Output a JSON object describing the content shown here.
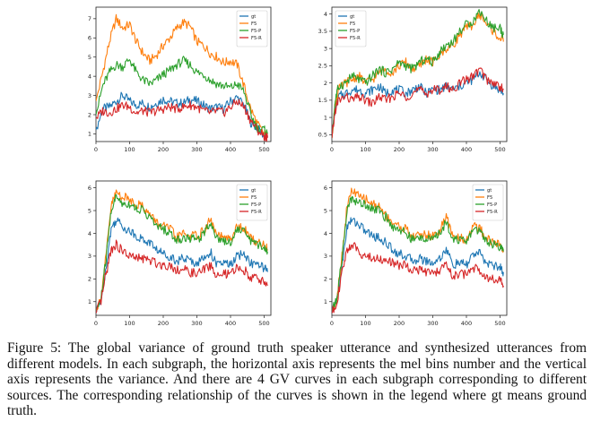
{
  "chart_data": [
    {
      "type": "line",
      "title": "",
      "xlabel": "",
      "ylabel": "",
      "xlim": [
        0,
        520
      ],
      "ylim": [
        0.6,
        7.6
      ],
      "xticks": [
        0,
        100,
        200,
        300,
        400,
        500
      ],
      "yticks": [
        1,
        2,
        3,
        4,
        5,
        6,
        7
      ],
      "legend": "top-right",
      "series": [
        {
          "name": "gt",
          "color": "#1f77b4",
          "x": [
            0,
            20,
            40,
            60,
            80,
            100,
            120,
            140,
            160,
            180,
            200,
            220,
            240,
            260,
            280,
            300,
            320,
            340,
            360,
            380,
            400,
            420,
            440,
            460,
            480,
            500,
            510
          ],
          "values": [
            1.2,
            2.3,
            2.4,
            2.7,
            3.0,
            2.7,
            2.5,
            2.6,
            2.4,
            2.6,
            2.8,
            2.7,
            2.6,
            2.6,
            2.8,
            2.7,
            2.5,
            2.3,
            2.4,
            2.3,
            2.7,
            2.9,
            2.5,
            1.6,
            1.3,
            0.9,
            0.8
          ]
        },
        {
          "name": "F5",
          "color": "#ff7f0e",
          "x": [
            0,
            20,
            40,
            60,
            80,
            100,
            120,
            140,
            160,
            180,
            200,
            220,
            240,
            260,
            280,
            300,
            320,
            340,
            360,
            380,
            400,
            420,
            440,
            460,
            480,
            500,
            510
          ],
          "values": [
            2.7,
            4.2,
            5.8,
            7.0,
            6.5,
            6.7,
            5.8,
            5.2,
            4.8,
            5.1,
            5.6,
            6.0,
            6.5,
            6.8,
            6.6,
            5.8,
            5.6,
            5.2,
            5.0,
            4.7,
            4.8,
            4.6,
            3.5,
            2.3,
            1.5,
            1.0,
            0.9
          ]
        },
        {
          "name": "F5-P",
          "color": "#2ca02c",
          "x": [
            0,
            20,
            40,
            60,
            80,
            100,
            120,
            140,
            160,
            180,
            200,
            220,
            240,
            260,
            280,
            300,
            320,
            340,
            360,
            380,
            400,
            420,
            440,
            460,
            480,
            500,
            510
          ],
          "values": [
            2.0,
            3.5,
            4.2,
            4.6,
            4.5,
            4.9,
            4.2,
            3.8,
            3.6,
            3.8,
            4.1,
            4.3,
            4.6,
            4.8,
            4.6,
            4.2,
            4.1,
            3.8,
            3.6,
            3.5,
            3.4,
            3.6,
            3.2,
            2.0,
            1.3,
            1.2,
            1.0
          ]
        },
        {
          "name": "F5-R",
          "color": "#d62728",
          "x": [
            0,
            20,
            40,
            60,
            80,
            100,
            120,
            140,
            160,
            180,
            200,
            220,
            240,
            260,
            280,
            300,
            320,
            340,
            360,
            380,
            400,
            420,
            440,
            460,
            480,
            500,
            510
          ],
          "values": [
            1.8,
            2.2,
            2.1,
            2.3,
            2.5,
            2.4,
            2.1,
            2.2,
            2.1,
            2.2,
            2.3,
            2.4,
            2.3,
            2.4,
            2.5,
            2.4,
            2.2,
            2.1,
            2.2,
            2.1,
            2.4,
            2.7,
            2.4,
            1.7,
            1.2,
            0.9,
            0.8
          ]
        }
      ]
    },
    {
      "type": "line",
      "title": "",
      "xlabel": "",
      "ylabel": "",
      "xlim": [
        0,
        520
      ],
      "ylim": [
        0.3,
        4.2
      ],
      "xticks": [
        0,
        100,
        200,
        300,
        400,
        500
      ],
      "yticks": [
        0.5,
        1.0,
        1.5,
        2.0,
        2.5,
        3.0,
        3.5,
        4.0
      ],
      "legend": "top-left",
      "series": [
        {
          "name": "gt",
          "color": "#1f77b4",
          "x": [
            0,
            10,
            20,
            40,
            60,
            80,
            100,
            120,
            140,
            160,
            180,
            200,
            220,
            240,
            260,
            280,
            300,
            320,
            340,
            360,
            380,
            400,
            420,
            440,
            460,
            480,
            500,
            510
          ],
          "values": [
            0.4,
            1.3,
            1.6,
            1.7,
            1.8,
            1.8,
            1.7,
            1.8,
            1.9,
            1.7,
            1.8,
            1.8,
            1.7,
            1.8,
            1.9,
            1.7,
            1.8,
            1.8,
            1.9,
            1.8,
            1.9,
            2.0,
            2.1,
            2.3,
            2.1,
            1.9,
            1.8,
            1.7
          ]
        },
        {
          "name": "F5",
          "color": "#ff7f0e",
          "x": [
            0,
            10,
            20,
            40,
            60,
            80,
            100,
            120,
            140,
            160,
            180,
            200,
            220,
            240,
            260,
            280,
            300,
            320,
            340,
            360,
            380,
            400,
            420,
            440,
            460,
            480,
            500,
            510
          ],
          "values": [
            0.4,
            1.4,
            1.8,
            2.0,
            2.1,
            2.2,
            2.0,
            2.1,
            2.3,
            2.4,
            2.3,
            2.5,
            2.6,
            2.4,
            2.5,
            2.7,
            2.6,
            2.8,
            3.0,
            3.1,
            3.4,
            3.6,
            3.7,
            4.0,
            3.7,
            3.5,
            3.3,
            3.2
          ]
        },
        {
          "name": "F5-P",
          "color": "#2ca02c",
          "x": [
            0,
            10,
            20,
            40,
            60,
            80,
            100,
            120,
            140,
            160,
            180,
            200,
            220,
            240,
            260,
            280,
            300,
            320,
            340,
            360,
            380,
            400,
            420,
            440,
            460,
            480,
            500,
            510
          ],
          "values": [
            0.4,
            1.5,
            1.9,
            2.0,
            2.2,
            2.1,
            2.0,
            2.2,
            2.4,
            2.3,
            2.4,
            2.6,
            2.5,
            2.4,
            2.6,
            2.7,
            2.6,
            2.9,
            3.1,
            3.2,
            3.5,
            3.7,
            3.8,
            4.1,
            3.8,
            3.6,
            3.6,
            3.4
          ]
        },
        {
          "name": "F5-R",
          "color": "#d62728",
          "x": [
            0,
            10,
            20,
            40,
            60,
            80,
            100,
            120,
            140,
            160,
            180,
            200,
            220,
            240,
            260,
            280,
            300,
            320,
            340,
            360,
            380,
            400,
            420,
            440,
            460,
            480,
            500,
            510
          ],
          "values": [
            0.4,
            1.2,
            1.5,
            1.6,
            1.5,
            1.6,
            1.5,
            1.4,
            1.6,
            1.5,
            1.6,
            1.7,
            1.6,
            1.7,
            1.8,
            1.7,
            1.8,
            1.8,
            1.9,
            1.8,
            2.0,
            2.1,
            2.2,
            2.4,
            2.1,
            2.0,
            1.9,
            1.8
          ]
        }
      ]
    },
    {
      "type": "line",
      "title": "",
      "xlabel": "",
      "ylabel": "",
      "xlim": [
        0,
        520
      ],
      "ylim": [
        0.4,
        6.3
      ],
      "xticks": [
        0,
        100,
        200,
        300,
        400,
        500
      ],
      "yticks": [
        1,
        2,
        3,
        4,
        5,
        6
      ],
      "legend": "top-right",
      "series": [
        {
          "name": "gt",
          "color": "#1f77b4",
          "x": [
            0,
            15,
            30,
            45,
            60,
            80,
            100,
            120,
            140,
            160,
            180,
            200,
            220,
            240,
            260,
            280,
            300,
            320,
            340,
            360,
            380,
            400,
            420,
            440,
            460,
            480,
            500,
            510
          ],
          "values": [
            0.5,
            1.1,
            2.5,
            4.2,
            4.6,
            4.3,
            4.1,
            3.9,
            3.7,
            3.6,
            3.3,
            3.1,
            3.0,
            2.8,
            2.9,
            2.8,
            2.7,
            2.9,
            3.2,
            2.6,
            2.7,
            2.6,
            3.0,
            3.1,
            2.7,
            2.6,
            2.5,
            2.3
          ]
        },
        {
          "name": "F5",
          "color": "#ff7f0e",
          "x": [
            0,
            15,
            30,
            45,
            60,
            80,
            100,
            120,
            140,
            160,
            180,
            200,
            220,
            240,
            260,
            280,
            300,
            320,
            340,
            360,
            380,
            400,
            420,
            440,
            460,
            480,
            500,
            510
          ],
          "values": [
            0.6,
            1.2,
            3.0,
            5.2,
            5.8,
            5.6,
            5.5,
            5.3,
            5.2,
            4.8,
            4.5,
            4.3,
            4.2,
            3.8,
            4.0,
            3.9,
            3.9,
            4.1,
            4.6,
            3.9,
            3.8,
            3.7,
            4.3,
            4.2,
            3.8,
            3.6,
            3.5,
            3.3
          ]
        },
        {
          "name": "F5-P",
          "color": "#2ca02c",
          "x": [
            0,
            15,
            30,
            45,
            60,
            80,
            100,
            120,
            140,
            160,
            180,
            200,
            220,
            240,
            260,
            280,
            300,
            320,
            340,
            360,
            380,
            400,
            420,
            440,
            460,
            480,
            500,
            510
          ],
          "values": [
            0.6,
            1.1,
            2.9,
            5.0,
            5.6,
            5.3,
            5.3,
            5.1,
            5.0,
            4.7,
            4.3,
            4.2,
            4.0,
            3.7,
            3.8,
            3.8,
            3.7,
            4.0,
            4.5,
            3.8,
            3.7,
            3.6,
            4.2,
            4.1,
            3.7,
            3.5,
            3.4,
            3.2
          ]
        },
        {
          "name": "F5-R",
          "color": "#d62728",
          "x": [
            0,
            15,
            30,
            45,
            60,
            80,
            100,
            120,
            140,
            160,
            180,
            200,
            220,
            240,
            260,
            280,
            300,
            320,
            340,
            360,
            380,
            400,
            420,
            440,
            460,
            480,
            500,
            510
          ],
          "values": [
            0.5,
            1.0,
            2.2,
            3.3,
            3.5,
            3.2,
            3.0,
            2.9,
            2.9,
            2.8,
            2.7,
            2.6,
            2.6,
            2.4,
            2.4,
            2.3,
            2.2,
            2.4,
            2.6,
            2.1,
            2.2,
            2.2,
            2.5,
            2.4,
            2.1,
            2.0,
            1.9,
            1.7
          ]
        }
      ]
    },
    {
      "type": "line",
      "title": "",
      "xlabel": "",
      "ylabel": "",
      "xlim": [
        0,
        520
      ],
      "ylim": [
        0.4,
        6.3
      ],
      "xticks": [
        0,
        100,
        200,
        300,
        400,
        500
      ],
      "yticks": [
        1,
        2,
        3,
        4,
        5,
        6
      ],
      "legend": "top-right",
      "series": [
        {
          "name": "gt",
          "color": "#1f77b4",
          "x": [
            0,
            15,
            30,
            45,
            60,
            80,
            100,
            120,
            140,
            160,
            180,
            200,
            220,
            240,
            260,
            280,
            300,
            320,
            340,
            360,
            380,
            400,
            420,
            440,
            460,
            480,
            500,
            510
          ],
          "values": [
            0.5,
            1.1,
            2.5,
            4.3,
            4.6,
            4.4,
            4.1,
            3.9,
            3.8,
            3.6,
            3.3,
            3.1,
            3.0,
            2.8,
            2.9,
            2.8,
            2.7,
            2.9,
            3.3,
            2.6,
            2.7,
            2.6,
            3.1,
            3.1,
            2.7,
            2.6,
            2.5,
            2.3
          ]
        },
        {
          "name": "F5",
          "color": "#ff7f0e",
          "x": [
            0,
            15,
            30,
            45,
            60,
            80,
            100,
            120,
            140,
            160,
            180,
            200,
            220,
            240,
            260,
            280,
            300,
            320,
            340,
            360,
            380,
            400,
            420,
            440,
            460,
            480,
            500,
            510
          ],
          "values": [
            0.6,
            1.2,
            3.0,
            5.2,
            5.9,
            5.6,
            5.5,
            5.3,
            5.2,
            4.8,
            4.5,
            4.3,
            4.2,
            3.8,
            4.0,
            3.9,
            3.9,
            4.1,
            4.7,
            3.9,
            3.8,
            3.7,
            4.3,
            4.2,
            3.8,
            3.6,
            3.5,
            3.3
          ]
        },
        {
          "name": "F5-P",
          "color": "#2ca02c",
          "x": [
            0,
            15,
            30,
            45,
            60,
            80,
            100,
            120,
            140,
            160,
            180,
            200,
            220,
            240,
            260,
            280,
            300,
            320,
            340,
            360,
            380,
            400,
            420,
            440,
            460,
            480,
            500,
            510
          ],
          "values": [
            0.6,
            1.1,
            2.9,
            5.0,
            5.6,
            5.3,
            5.3,
            5.1,
            5.0,
            4.7,
            4.3,
            4.2,
            4.0,
            3.7,
            3.8,
            3.8,
            3.7,
            4.0,
            4.5,
            3.8,
            3.7,
            3.6,
            4.2,
            4.1,
            3.7,
            3.5,
            3.4,
            3.2
          ]
        },
        {
          "name": "F5-R",
          "color": "#d62728",
          "x": [
            0,
            15,
            30,
            45,
            60,
            80,
            100,
            120,
            140,
            160,
            180,
            200,
            220,
            240,
            260,
            280,
            300,
            320,
            340,
            360,
            380,
            400,
            420,
            440,
            460,
            480,
            500,
            510
          ],
          "values": [
            0.5,
            1.0,
            2.2,
            3.3,
            3.5,
            3.2,
            3.0,
            2.9,
            2.9,
            2.8,
            2.7,
            2.6,
            2.6,
            2.4,
            2.4,
            2.3,
            2.2,
            2.4,
            2.6,
            2.1,
            2.2,
            2.2,
            2.5,
            2.4,
            2.1,
            2.0,
            1.9,
            1.7
          ]
        }
      ]
    }
  ],
  "caption": "Figure 5: The global variance of ground truth speaker utterance and synthesized utterances from different models. In each subgraph, the horizontal axis represents the mel bins number and the vertical axis represents the variance. And there are 4 GV curves in each subgraph corresponding to different sources. The corresponding relationship of the curves is shown in the legend where gt means ground truth."
}
